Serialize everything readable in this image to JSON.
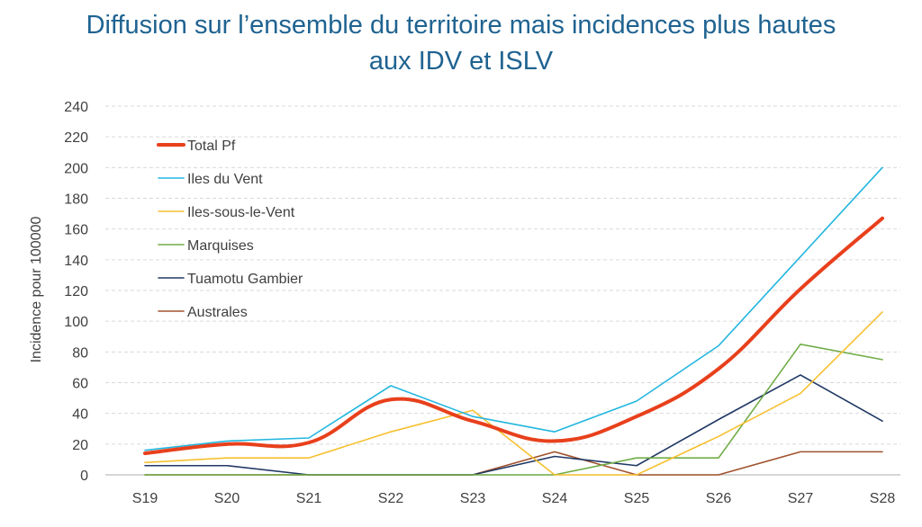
{
  "chart_data": {
    "type": "line",
    "title_lines": [
      "Diffusion sur l’ensemble du territoire mais incidences plus hautes",
      "aux IDV et ISLV"
    ],
    "xlabel": "",
    "ylabel": "Incidence pour 100000",
    "categories": [
      "S19",
      "S20",
      "S21",
      "S22",
      "S23",
      "S24",
      "S25",
      "S26",
      "S27",
      "S28"
    ],
    "ylim": [
      0,
      240
    ],
    "yticks": [
      0,
      20,
      40,
      60,
      80,
      100,
      120,
      140,
      160,
      180,
      200,
      220,
      240
    ],
    "grid": "horizontal-dashed",
    "legend_position": "top-left",
    "series": [
      {
        "name": "Total Pf",
        "color": "#e8401c",
        "width": 4,
        "smooth": true,
        "values": [
          14,
          20,
          21,
          49,
          35,
          22,
          38,
          69,
          121,
          167
        ]
      },
      {
        "name": "Iles du Vent",
        "color": "#23b6df",
        "width": 1.6,
        "smooth": false,
        "values": [
          16,
          22,
          24,
          58,
          38,
          28,
          48,
          84,
          142,
          200
        ]
      },
      {
        "name": "Iles-sous-le-Vent",
        "color": "#f6c02f",
        "width": 1.6,
        "smooth": false,
        "values": [
          8,
          11,
          11,
          28,
          42,
          0,
          0,
          25,
          53,
          106
        ]
      },
      {
        "name": "Marquises",
        "color": "#70ad47",
        "width": 1.6,
        "smooth": false,
        "values": [
          0,
          0,
          0,
          0,
          0,
          0,
          11,
          11,
          85,
          75
        ]
      },
      {
        "name": "Tuamotu Gambier",
        "color": "#203864",
        "width": 1.6,
        "smooth": false,
        "values": [
          6,
          6,
          0,
          0,
          0,
          12,
          6,
          36,
          65,
          35
        ]
      },
      {
        "name": "Australes",
        "color": "#a0522d",
        "width": 1.6,
        "smooth": false,
        "values": [
          0,
          0,
          0,
          0,
          0,
          15,
          0,
          0,
          15,
          15
        ]
      }
    ]
  }
}
